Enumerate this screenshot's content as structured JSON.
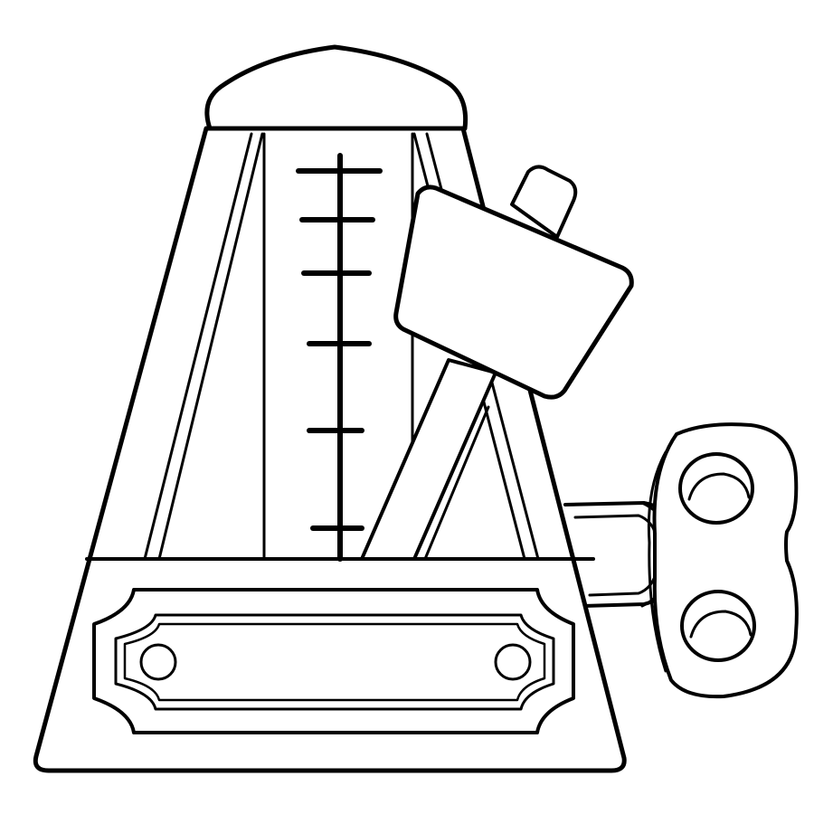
{
  "colors": {
    "background": "#ffffff",
    "line": "#000000",
    "fill": "#ffffff"
  },
  "illustration": {
    "subject": "metronome",
    "style": "line-art",
    "parts": [
      "top-cap",
      "pyramid-body",
      "tempo-scale",
      "pendulum-arm",
      "sliding-weight",
      "nameplate",
      "winding-key"
    ],
    "tempo_scale_mark_count": 6,
    "nameplate_screw_count": 2,
    "winding_key_hole_count": 2
  }
}
